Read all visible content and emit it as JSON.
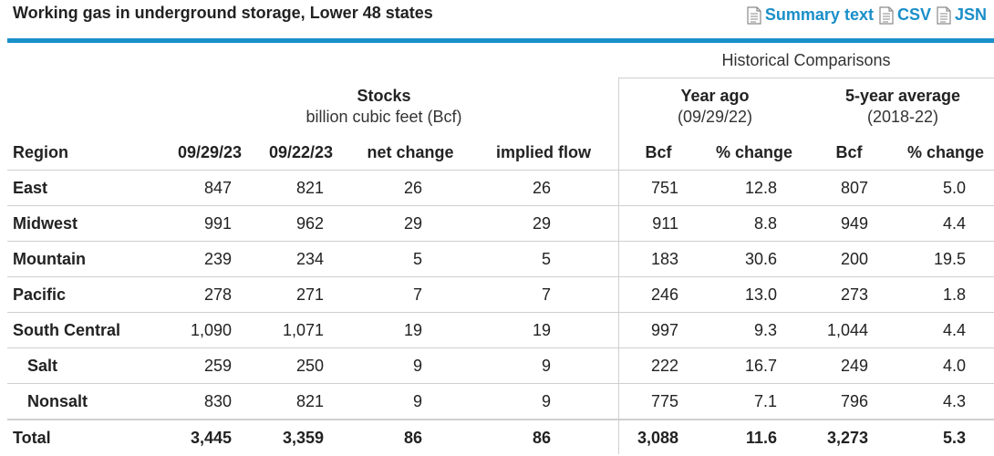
{
  "title": "Working gas in underground storage, Lower 48 states",
  "links": [
    {
      "label": "Summary text",
      "icon": "document-icon"
    },
    {
      "label": "CSV",
      "icon": "document-icon"
    },
    {
      "label": "JSN",
      "icon": "document-icon"
    }
  ],
  "accent_color": "#1a8fc9",
  "historical_title": "Historical Comparisons",
  "stocks": {
    "title": "Stocks",
    "subtitle": "billion cubic feet (Bcf)"
  },
  "year_ago": {
    "title": "Year ago",
    "subtitle": "(09/29/22)"
  },
  "five_year": {
    "title": "5-year average",
    "subtitle": "(2018-22)"
  },
  "columns": [
    "Region",
    "09/29/23",
    "09/22/23",
    "net change",
    "implied flow",
    "Bcf",
    "% change",
    "Bcf",
    "% change"
  ],
  "rows": [
    {
      "region": "East",
      "cur": "847",
      "prev": "821",
      "net": "26",
      "flow": "26",
      "ya_bcf": "751",
      "ya_pct": "12.8",
      "avg_bcf": "807",
      "avg_pct": "5.0",
      "indent": false
    },
    {
      "region": "Midwest",
      "cur": "991",
      "prev": "962",
      "net": "29",
      "flow": "29",
      "ya_bcf": "911",
      "ya_pct": "8.8",
      "avg_bcf": "949",
      "avg_pct": "4.4",
      "indent": false
    },
    {
      "region": "Mountain",
      "cur": "239",
      "prev": "234",
      "net": "5",
      "flow": "5",
      "ya_bcf": "183",
      "ya_pct": "30.6",
      "avg_bcf": "200",
      "avg_pct": "19.5",
      "indent": false
    },
    {
      "region": "Pacific",
      "cur": "278",
      "prev": "271",
      "net": "7",
      "flow": "7",
      "ya_bcf": "246",
      "ya_pct": "13.0",
      "avg_bcf": "273",
      "avg_pct": "1.8",
      "indent": false
    },
    {
      "region": "South Central",
      "cur": "1,090",
      "prev": "1,071",
      "net": "19",
      "flow": "19",
      "ya_bcf": "997",
      "ya_pct": "9.3",
      "avg_bcf": "1,044",
      "avg_pct": "4.4",
      "indent": false
    },
    {
      "region": "Salt",
      "cur": "259",
      "prev": "250",
      "net": "9",
      "flow": "9",
      "ya_bcf": "222",
      "ya_pct": "16.7",
      "avg_bcf": "249",
      "avg_pct": "4.0",
      "indent": true
    },
    {
      "region": "Nonsalt",
      "cur": "830",
      "prev": "821",
      "net": "9",
      "flow": "9",
      "ya_bcf": "775",
      "ya_pct": "7.1",
      "avg_bcf": "796",
      "avg_pct": "4.3",
      "indent": true
    }
  ],
  "total": {
    "region": "Total",
    "cur": "3,445",
    "prev": "3,359",
    "net": "86",
    "flow": "86",
    "ya_bcf": "3,088",
    "ya_pct": "11.6",
    "avg_bcf": "3,273",
    "avg_pct": "5.3"
  }
}
